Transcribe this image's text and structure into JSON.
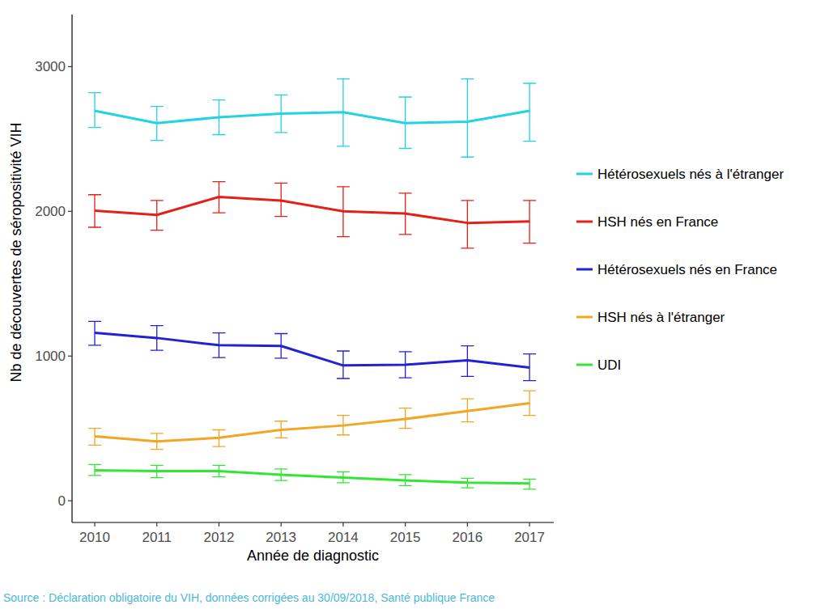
{
  "chart_data": {
    "type": "line",
    "x_label": "Année de diagnostic",
    "y_label": "Nb de découvertes de séropositivité VIH",
    "source": "Source : Déclaration obligatoire du VIH, données corrigées au 30/09/2018, Santé publique France",
    "x": [
      2010,
      2011,
      2012,
      2013,
      2014,
      2015,
      2016,
      2017
    ],
    "xlim": [
      2009.635,
      2017.39
    ],
    "xticks": [
      2010,
      2011,
      2012,
      2013,
      2014,
      2015,
      2016,
      2017
    ],
    "ylim": [
      -150,
      3360
    ],
    "yticks": [
      0,
      1000,
      2000,
      3000
    ],
    "grid": false,
    "legend": "right",
    "series": [
      {
        "name": "Hétérosexuels nés à l'étranger",
        "color": "#22d3e3",
        "values": [
          2695,
          2610,
          2650,
          2675,
          2685,
          2610,
          2620,
          2695
        ],
        "lower": [
          2580,
          2490,
          2530,
          2545,
          2450,
          2435,
          2375,
          2485
        ],
        "upper": [
          2820,
          2725,
          2770,
          2805,
          2915,
          2790,
          2915,
          2885
        ]
      },
      {
        "name": "HSH nés en France",
        "color": "#e32119",
        "values": [
          2005,
          1975,
          2100,
          2075,
          2000,
          1985,
          1920,
          1930
        ],
        "lower": [
          1890,
          1870,
          1990,
          1965,
          1825,
          1840,
          1745,
          1780
        ],
        "upper": [
          2115,
          2075,
          2205,
          2195,
          2170,
          2125,
          2075,
          2075
        ]
      },
      {
        "name": "Hétérosexuels nés en France",
        "color": "#2222d4",
        "values": [
          1160,
          1125,
          1075,
          1070,
          935,
          940,
          970,
          920
        ],
        "lower": [
          1075,
          1040,
          990,
          985,
          845,
          850,
          860,
          830
        ],
        "upper": [
          1240,
          1210,
          1160,
          1155,
          1035,
          1030,
          1070,
          1015
        ]
      },
      {
        "name": "HSH nés à l'étranger",
        "color": "#f5a524",
        "values": [
          445,
          410,
          435,
          490,
          520,
          565,
          620,
          675
        ],
        "lower": [
          385,
          355,
          375,
          435,
          455,
          500,
          545,
          590
        ],
        "upper": [
          500,
          465,
          490,
          550,
          590,
          640,
          705,
          760
        ]
      },
      {
        "name": "UDI",
        "color": "#33e633",
        "values": [
          210,
          205,
          205,
          180,
          160,
          140,
          125,
          120
        ],
        "lower": [
          175,
          160,
          165,
          140,
          125,
          105,
          90,
          80
        ],
        "upper": [
          250,
          245,
          245,
          220,
          200,
          180,
          155,
          150
        ]
      }
    ]
  }
}
